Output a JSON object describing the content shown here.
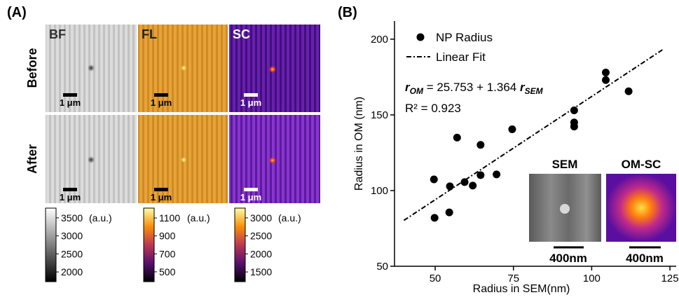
{
  "panel_a": {
    "label": "(A)",
    "columns": [
      "BF",
      "FL",
      "SC"
    ],
    "rows": [
      "Before",
      "After"
    ],
    "scale_bar_label": "1 μm",
    "colorbars": [
      {
        "ticks": [
          3500,
          3000,
          2500,
          2000
        ],
        "lim": [
          1730,
          3770
        ],
        "unit": "(a.u.)"
      },
      {
        "ticks": [
          1100,
          900,
          700,
          500
        ],
        "lim": [
          390,
          1210
        ],
        "unit": "(a.u.)"
      },
      {
        "ticks": [
          3000,
          2500,
          2000,
          1500
        ],
        "lim": [
          1230,
          3270
        ],
        "unit": "(a.u.)"
      }
    ]
  },
  "panel_b": {
    "label": "(B)",
    "insets": [
      {
        "label": "SEM",
        "scale_bar": "400nm"
      },
      {
        "label": "OM-SC",
        "scale_bar": "400nm"
      }
    ]
  },
  "chart_data": {
    "type": "scatter",
    "x_label": "Radius in SEM(nm)",
    "y_label": "Radius in OM (nm)",
    "x": [
      49.8,
      49.6,
      54.5,
      54.7,
      57,
      59.4,
      62,
      64.5,
      64.5,
      69.6,
      74.6,
      94.4,
      94.4,
      94.4,
      104.5,
      104.5,
      111.8
    ],
    "series": [
      {
        "name": "NP Radius",
        "color": "#000000",
        "values": [
          82,
          107.4,
          85.6,
          102.8,
          135,
          105.6,
          103.3,
          110.2,
          130.2,
          110.7,
          140.5,
          153,
          145,
          142.3,
          178,
          173,
          165.6
        ]
      }
    ],
    "fit": {
      "name": "Linear Fit",
      "intercept": 25.753,
      "slope": 1.364,
      "x_range": [
        40,
        123
      ]
    },
    "equation": {
      "lhs": "r",
      "lhs_sub": "OM",
      "eq": " = ",
      "plus": " + ",
      "rhs": "r",
      "rhs_sub": "SEM"
    },
    "r2_label": "R² = ",
    "r2": 0.923,
    "xlim": [
      37,
      127
    ],
    "ylim": [
      50,
      212
    ],
    "xticks": [
      50,
      75,
      100,
      125
    ],
    "yticks": [
      50,
      100,
      150,
      200
    ]
  }
}
